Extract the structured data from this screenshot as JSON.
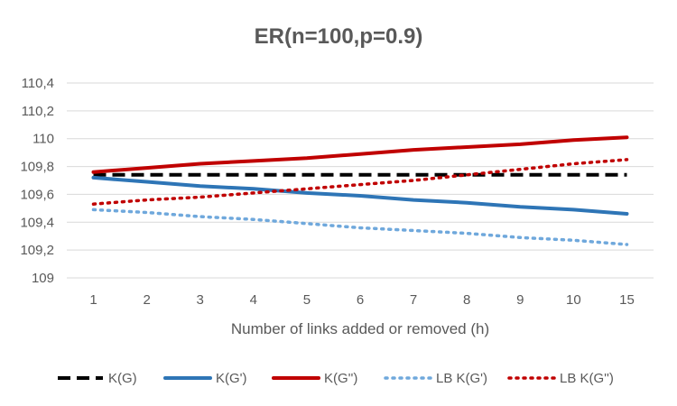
{
  "chart_data": {
    "type": "line",
    "title": "ER(n=100,p=0.9)",
    "xlabel": "Number of links added or removed (h)",
    "ylabel": "",
    "categories": [
      "1",
      "2",
      "3",
      "4",
      "5",
      "6",
      "7",
      "8",
      "9",
      "10",
      "15"
    ],
    "ylim": [
      109,
      110.4
    ],
    "yticks": [
      "109",
      "109,2",
      "109,4",
      "109,6",
      "109,8",
      "110",
      "110,2",
      "110,4"
    ],
    "grid": true,
    "legend_position": "bottom",
    "series": [
      {
        "name": "K(G)",
        "color": "#000000",
        "style": "dashed",
        "values": [
          109.74,
          109.74,
          109.74,
          109.74,
          109.74,
          109.74,
          109.74,
          109.74,
          109.74,
          109.74,
          109.74
        ]
      },
      {
        "name": "K(G')",
        "color": "#2e75b6",
        "style": "solid",
        "values": [
          109.72,
          109.69,
          109.66,
          109.64,
          109.61,
          109.59,
          109.56,
          109.54,
          109.51,
          109.49,
          109.46
        ]
      },
      {
        "name": "K(G'')",
        "color": "#c00000",
        "style": "solid",
        "values": [
          109.76,
          109.79,
          109.82,
          109.84,
          109.86,
          109.89,
          109.92,
          109.94,
          109.96,
          109.99,
          110.01
        ]
      },
      {
        "name": "LB K(G')",
        "color": "#6fa8dc",
        "style": "dotted",
        "values": [
          109.49,
          109.47,
          109.44,
          109.42,
          109.39,
          109.36,
          109.34,
          109.32,
          109.29,
          109.27,
          109.24
        ]
      },
      {
        "name": "LB K(G'')",
        "color": "#c00000",
        "style": "dotted",
        "values": [
          109.53,
          109.56,
          109.58,
          109.61,
          109.64,
          109.67,
          109.7,
          109.74,
          109.78,
          109.82,
          109.85
        ]
      }
    ]
  }
}
